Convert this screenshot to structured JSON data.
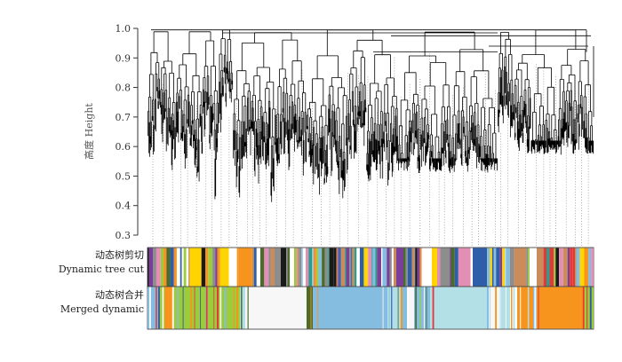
{
  "figure": {
    "y_axis_label": "高度 Height",
    "y_ticks": [
      "1.0",
      "0.9",
      "0.8",
      "0.7",
      "0.6",
      "0.5",
      "0.4",
      "0.3"
    ],
    "strips": [
      {
        "label_zh": "动态树剪切",
        "label_en": "Dynamic tree cut"
      },
      {
        "label_zh": "动态树合并",
        "label_en": "Merged dynamic"
      }
    ]
  },
  "chart_data": {
    "type": "dendrogram",
    "ylabel": "高度 Height",
    "ylim": [
      0.3,
      1.0
    ],
    "y_ticks": [
      1.0,
      0.9,
      0.8,
      0.7,
      0.6,
      0.5,
      0.4,
      0.3
    ],
    "color_rows": [
      "Dynamic tree cut",
      "Merged dynamic"
    ],
    "merged_palette": [
      "#f7f7f7",
      "#9ccc3c",
      "#85bde0",
      "#b3dfe6",
      "#f7941d",
      "#4a6b2a",
      "#2e5ea8",
      "#e53935",
      "#ffffff"
    ],
    "dynamic_palette": [
      "#e53935",
      "#9ccc3c",
      "#85bde0",
      "#f7941d",
      "#b3dfe6",
      "#2e5ea8",
      "#1a1a1a",
      "#7b3f99",
      "#ffd400",
      "#c98c5a",
      "#4a6b2a",
      "#e38fb5",
      "#2a9d8f",
      "#8d8d8d",
      "#ffffff"
    ]
  }
}
